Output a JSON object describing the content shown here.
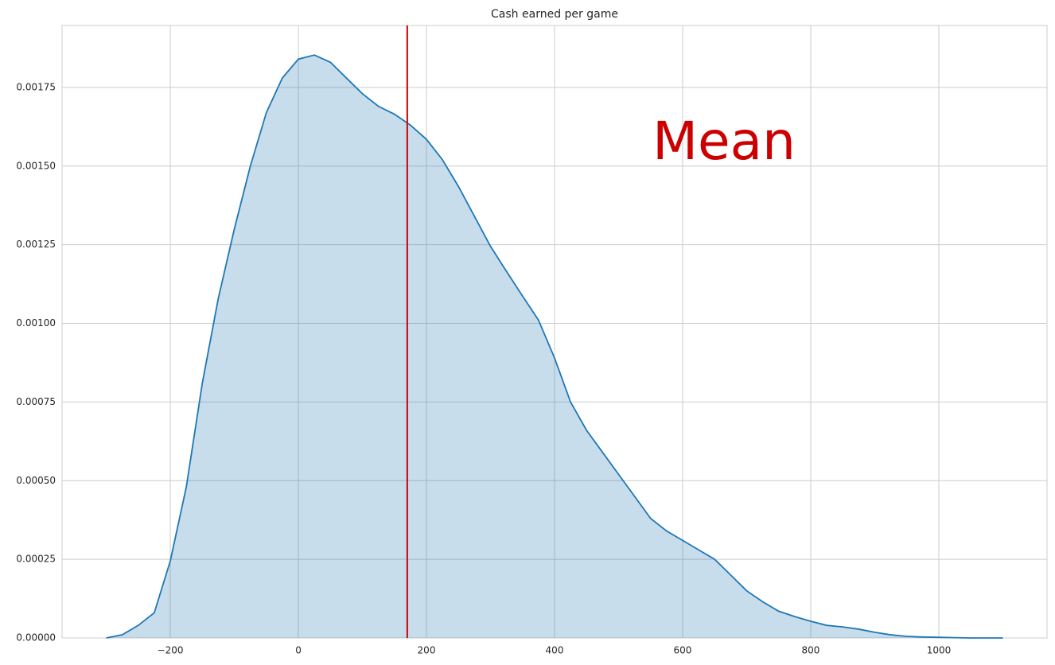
{
  "chart_data": {
    "type": "kde",
    "title": "Cash earned per game",
    "x": [
      -300,
      -275,
      -250,
      -225,
      -200,
      -175,
      -150,
      -125,
      -100,
      -75,
      -50,
      -25,
      0,
      25,
      50,
      75,
      100,
      125,
      150,
      175,
      200,
      225,
      250,
      275,
      300,
      325,
      350,
      375,
      400,
      425,
      450,
      475,
      500,
      525,
      550,
      575,
      600,
      625,
      650,
      675,
      700,
      725,
      750,
      775,
      800,
      825,
      850,
      875,
      900,
      925,
      950,
      975,
      1000,
      1025,
      1050,
      1075,
      1100
    ],
    "series": [
      {
        "color": "#1f77b4",
        "values": [
          0.0,
          1e-05,
          4e-05,
          8e-05,
          0.000245,
          0.00048,
          0.00081,
          0.00108,
          0.0013,
          0.0015,
          0.00167,
          0.00178,
          0.00184,
          0.001853,
          0.00183,
          0.00178,
          0.00173,
          0.00169,
          0.001665,
          0.00163,
          0.001585,
          0.00152,
          0.001435,
          0.00134,
          0.001245,
          0.001165,
          0.001087,
          0.00101,
          0.00089,
          0.00075,
          0.00066,
          0.00059,
          0.00052,
          0.00045,
          0.00038,
          0.00034,
          0.00031,
          0.00028,
          0.00025,
          0.0002,
          0.00015,
          0.000115,
          8.5e-05,
          6.8e-05,
          5.3e-05,
          4e-05,
          3.5e-05,
          2.8e-05,
          1.8e-05,
          1e-05,
          5e-06,
          3e-06,
          2e-06,
          1e-06,
          0.0,
          0.0,
          0.0
        ]
      }
    ],
    "mean_line": {
      "value": 170,
      "color": "#cc0000"
    },
    "annotations": [
      {
        "text": "Mean",
        "color": "#cc0000"
      }
    ],
    "xlim": [
      -369,
      1169
    ],
    "ylim": [
      0,
      0.001947
    ],
    "xticks": [
      {
        "value": -200,
        "label": "−200"
      },
      0,
      200,
      400,
      600,
      800,
      1000
    ],
    "yticks": [
      {
        "value": 0,
        "label": "0.00000"
      },
      {
        "value": 0.00025,
        "label": "0.00025"
      },
      {
        "value": 0.0005,
        "label": "0.00050"
      },
      {
        "value": 0.00075,
        "label": "0.00075"
      },
      {
        "value": 0.001,
        "label": "0.00100"
      },
      {
        "value": 0.00125,
        "label": "0.00125"
      },
      {
        "value": 0.0015,
        "label": "0.00150"
      },
      {
        "value": 0.00175,
        "label": "0.00175"
      }
    ],
    "grid": true
  }
}
